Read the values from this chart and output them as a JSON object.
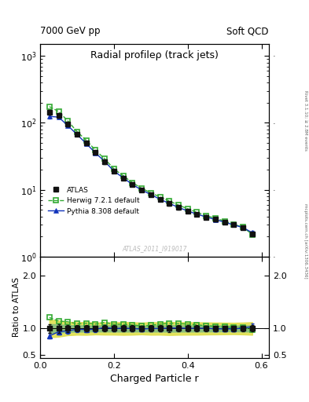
{
  "title": "Radial profileρ (track jets)",
  "top_left": "7000 GeV pp",
  "top_right": "Soft QCD",
  "watermark": "ATLAS_2011_I919017",
  "right_label_top": "Rivet 3.1.10; ≥ 2.8M events",
  "right_label_bot": "mcplots.cern.ch [arXiv:1306.3436]",
  "xlabel": "Charged Particle r",
  "ylabel_ratio": "Ratio to ATLAS",
  "atlas_r": [
    0.025,
    0.05,
    0.075,
    0.1,
    0.125,
    0.15,
    0.175,
    0.2,
    0.225,
    0.25,
    0.275,
    0.3,
    0.325,
    0.35,
    0.375,
    0.4,
    0.425,
    0.45,
    0.475,
    0.5,
    0.525,
    0.55,
    0.575
  ],
  "atlas_y": [
    145,
    130,
    95,
    68,
    50,
    36,
    26,
    19,
    15,
    12,
    10,
    8.5,
    7.2,
    6.2,
    5.4,
    4.8,
    4.3,
    3.9,
    3.6,
    3.3,
    3.0,
    2.7,
    2.2
  ],
  "atlas_yerr": [
    12,
    10,
    6,
    4,
    3,
    2,
    1.5,
    1.1,
    0.9,
    0.7,
    0.55,
    0.5,
    0.42,
    0.38,
    0.32,
    0.28,
    0.25,
    0.22,
    0.2,
    0.18,
    0.16,
    0.15,
    0.13
  ],
  "herwig_r": [
    0.025,
    0.05,
    0.075,
    0.1,
    0.125,
    0.15,
    0.175,
    0.2,
    0.225,
    0.25,
    0.275,
    0.3,
    0.325,
    0.35,
    0.375,
    0.4,
    0.425,
    0.45,
    0.475,
    0.5,
    0.525,
    0.55,
    0.575
  ],
  "herwig_y": [
    175,
    148,
    107,
    74,
    55,
    39,
    29,
    20.5,
    16.2,
    12.8,
    10.5,
    9.0,
    7.8,
    6.8,
    5.9,
    5.2,
    4.6,
    4.1,
    3.75,
    3.4,
    3.05,
    2.75,
    2.15
  ],
  "pythia_r": [
    0.025,
    0.05,
    0.075,
    0.1,
    0.125,
    0.15,
    0.175,
    0.2,
    0.225,
    0.25,
    0.275,
    0.3,
    0.325,
    0.35,
    0.375,
    0.4,
    0.425,
    0.45,
    0.475,
    0.5,
    0.525,
    0.55,
    0.575
  ],
  "pythia_y": [
    125,
    122,
    91,
    67,
    49,
    35.5,
    26.5,
    19.0,
    15.1,
    12.0,
    9.9,
    8.5,
    7.2,
    6.25,
    5.45,
    4.82,
    4.32,
    3.92,
    3.58,
    3.28,
    2.98,
    2.72,
    2.28
  ],
  "pythia_yerr": [
    8,
    7,
    5,
    3.5,
    2.5,
    1.8,
    1.3,
    0.9,
    0.75,
    0.6,
    0.5,
    0.4,
    0.35,
    0.3,
    0.25,
    0.23,
    0.2,
    0.18,
    0.17,
    0.16,
    0.14,
    0.13,
    0.12
  ],
  "color_atlas": "#111111",
  "color_herwig": "#33aa33",
  "color_pythia": "#1133bb",
  "color_band_green": "#80bb80",
  "color_band_yellow": "#dddd44",
  "xlim": [
    0.0,
    0.62
  ],
  "ylim_main": [
    1.0,
    1500.0
  ],
  "ylim_ratio": [
    0.45,
    2.35
  ],
  "legend_labels": [
    "ATLAS",
    "Herwig 7.2.1 default",
    "Pythia 8.308 default"
  ]
}
